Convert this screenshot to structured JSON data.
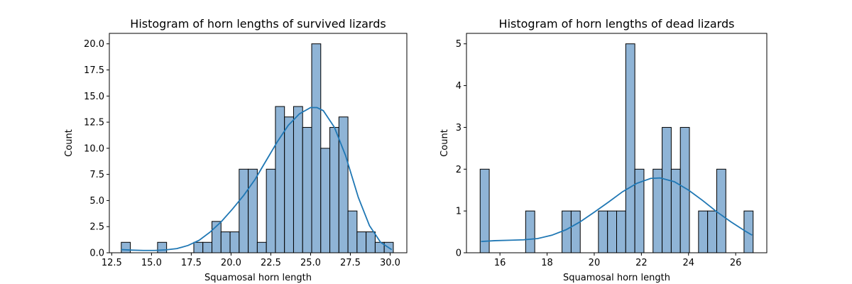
{
  "chart_data": [
    {
      "type": "bar",
      "title": "Histogram of horn lengths of survived lizards",
      "xlabel": "Squamosal horn length",
      "ylabel": "Count",
      "xlim": [
        12.35,
        31.05
      ],
      "ylim": [
        0,
        21
      ],
      "xticks": [
        12.5,
        15.0,
        17.5,
        20.0,
        22.5,
        25.0,
        27.5,
        30.0
      ],
      "xtick_labels": [
        "12.5",
        "15.0",
        "17.5",
        "20.0",
        "22.5",
        "25.0",
        "27.5",
        "30.0"
      ],
      "yticks": [
        0,
        2.5,
        5,
        7.5,
        10,
        12.5,
        15,
        17.5,
        20
      ],
      "ytick_labels": [
        "0.0",
        "2.5",
        "5.0",
        "7.5",
        "10.0",
        "12.5",
        "15.0",
        "17.5",
        "20.0"
      ],
      "grid": false,
      "bins": {
        "start": 13.1,
        "width": 0.57,
        "counts": [
          1,
          0,
          0,
          0,
          1,
          0,
          0,
          0,
          1,
          1,
          3,
          2,
          2,
          8,
          8,
          1,
          8,
          14,
          13,
          14,
          12,
          20,
          10,
          12,
          13,
          4,
          2,
          2,
          1,
          1
        ]
      },
      "kde": {
        "x": [
          13.1,
          13.8,
          14.5,
          15.2,
          15.9,
          16.6,
          17.3,
          18.0,
          18.7,
          19.4,
          20.1,
          20.8,
          21.5,
          22.2,
          22.9,
          23.6,
          24.3,
          25.0,
          25.4,
          25.8,
          26.5,
          27.2,
          27.6,
          28.0,
          28.7,
          29.4,
          30.1
        ],
        "y": [
          0.3,
          0.25,
          0.22,
          0.22,
          0.28,
          0.4,
          0.7,
          1.2,
          2.0,
          3.0,
          4.2,
          5.5,
          7.0,
          8.8,
          10.6,
          12.2,
          13.3,
          13.9,
          13.9,
          13.6,
          12.0,
          9.3,
          7.3,
          5.3,
          2.6,
          1.0,
          0.3
        ]
      }
    },
    {
      "type": "bar",
      "title": "Histogram of horn lengths of dead lizards",
      "xlabel": "Squamosal horn length",
      "ylabel": "Count",
      "xlim": [
        14.58,
        27.32
      ],
      "ylim": [
        0,
        5.25
      ],
      "xticks": [
        16,
        18,
        20,
        22,
        24,
        26
      ],
      "xtick_labels": [
        "16",
        "18",
        "20",
        "22",
        "24",
        "26"
      ],
      "yticks": [
        0,
        1,
        2,
        3,
        4,
        5
      ],
      "ytick_labels": [
        "0",
        "1",
        "2",
        "3",
        "4",
        "5"
      ],
      "grid": false,
      "bins": {
        "start": 15.16,
        "width": 0.386,
        "counts": [
          2,
          0,
          0,
          0,
          0,
          1,
          0,
          0,
          0,
          1,
          1,
          0,
          0,
          1,
          1,
          1,
          5,
          2,
          0,
          2,
          3,
          2,
          3,
          0,
          1,
          1,
          2,
          0,
          0,
          1
        ]
      },
      "kde": {
        "x": [
          15.2,
          15.8,
          16.4,
          17.0,
          17.6,
          18.2,
          18.8,
          19.4,
          20.0,
          20.6,
          21.2,
          21.8,
          22.4,
          22.8,
          23.4,
          24.0,
          24.6,
          25.2,
          25.8,
          26.4,
          26.7
        ],
        "y": [
          0.27,
          0.29,
          0.3,
          0.31,
          0.34,
          0.42,
          0.55,
          0.74,
          0.97,
          1.21,
          1.46,
          1.66,
          1.78,
          1.79,
          1.7,
          1.5,
          1.25,
          0.98,
          0.74,
          0.52,
          0.42
        ]
      }
    }
  ]
}
